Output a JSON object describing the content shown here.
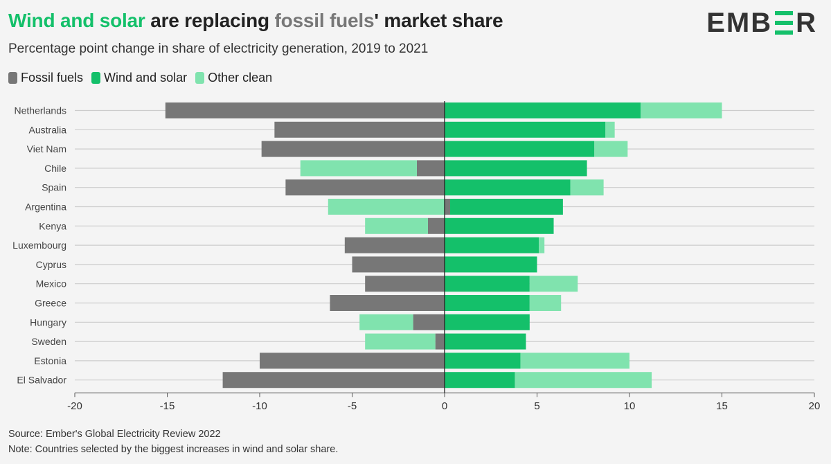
{
  "header": {
    "title_part1": "Wind and solar",
    "title_part2": " are replacing ",
    "title_part3": "fossil fuels",
    "title_part4": "' market share",
    "subtitle": "Percentage point change in share of electricity generation, 2019 to 2021",
    "logo": {
      "left": "EMB",
      "right": "R"
    }
  },
  "colors": {
    "fossil": "#777777",
    "wind_solar": "#14c06a",
    "other_clean": "#80e3ae",
    "grid": "#cccccc",
    "axis": "#222222"
  },
  "legend": [
    {
      "label": "Fossil fuels",
      "color": "#777777"
    },
    {
      "label": "Wind and solar",
      "color": "#14c06a"
    },
    {
      "label": "Other clean",
      "color": "#80e3ae"
    }
  ],
  "chart_data": {
    "type": "bar",
    "orientation": "horizontal",
    "stacked": "diverging",
    "title": "Wind and solar are replacing fossil fuels' market share",
    "subtitle": "Percentage point change in share of electricity generation, 2019 to 2021",
    "xlabel": "",
    "ylabel": "",
    "xlim": [
      -20,
      20
    ],
    "xticks": [
      -20,
      -15,
      -10,
      -5,
      0,
      5,
      10,
      15,
      20
    ],
    "xtick_labels": [
      "-20",
      "-15",
      "-10",
      "-5",
      "0",
      "5",
      "10",
      "15",
      "20"
    ],
    "grid": true,
    "legend_position": "top-left",
    "categories": [
      "Netherlands",
      "Australia",
      "Viet Nam",
      "Chile",
      "Spain",
      "Argentina",
      "Kenya",
      "Luxembourg",
      "Cyprus",
      "Mexico",
      "Greece",
      "Hungary",
      "Sweden",
      "Estonia",
      "El Salvador"
    ],
    "series": [
      {
        "name": "Fossil fuels",
        "values": [
          -15.1,
          -9.2,
          -9.9,
          -1.5,
          -8.6,
          0.3,
          -0.9,
          -5.4,
          -5.0,
          -4.3,
          -6.2,
          -1.7,
          -0.5,
          -10.0,
          -12.0
        ]
      },
      {
        "name": "Wind and solar",
        "values": [
          10.6,
          8.7,
          8.1,
          7.7,
          6.8,
          6.1,
          5.9,
          5.1,
          5.0,
          4.6,
          4.6,
          4.6,
          4.4,
          4.1,
          3.8
        ]
      },
      {
        "name": "Other clean",
        "values": [
          4.4,
          0.5,
          1.8,
          -6.3,
          1.8,
          -6.3,
          -3.4,
          0.3,
          0.0,
          2.6,
          1.7,
          -2.9,
          -3.8,
          5.9,
          7.4
        ]
      }
    ]
  },
  "footer": {
    "source": "Source: Ember's Global Electricity Review 2022",
    "note": "Note: Countries selected by the biggest increases in wind and solar share."
  }
}
